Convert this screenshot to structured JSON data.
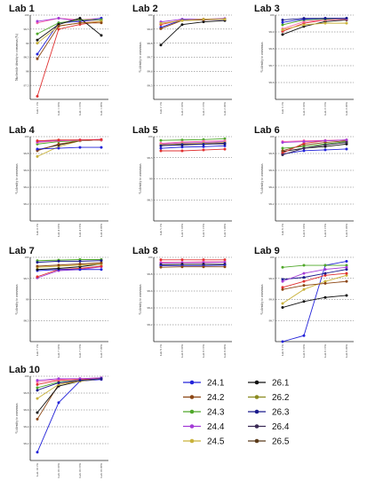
{
  "legend": [
    {
      "name": "24.1",
      "color": "#2323d9"
    },
    {
      "name": "24.2",
      "color": "#8b4513"
    },
    {
      "name": "24.3",
      "color": "#4fa82a"
    },
    {
      "name": "24.4",
      "color": "#a33bd6"
    },
    {
      "name": "24.5",
      "color": "#c9b23a"
    },
    {
      "name": "26.1",
      "color": "#111111"
    },
    {
      "name": "26.2",
      "color": "#8a8a1e"
    },
    {
      "name": "26.3",
      "color": "#1a1a8c"
    },
    {
      "name": "26.4",
      "color": "#3a2a55"
    },
    {
      "name": "26.5",
      "color": "#5a3a1a"
    }
  ],
  "chart_data": [
    {
      "type": "line",
      "title": "Lab 1",
      "ylabel": "Nucleotide identity to consensus (%)",
      "categories": [
        "Lab 1 1%",
        "Lab 1 10%",
        "Lab 1 15%",
        "Lab 1 20%"
      ],
      "ylim": [
        97.4,
        100.1
      ],
      "yticks": [
        "97.5",
        "98",
        "98.5",
        "99",
        "99.5",
        "100"
      ],
      "series": [
        {
          "color": "#e03030",
          "values": [
            97.5,
            99.65,
            99.8,
            99.9
          ]
        },
        {
          "color": "#ff66aa",
          "values": [
            99.85,
            100.0,
            99.95,
            100.0
          ]
        },
        {
          "color": "#a33bd6",
          "values": [
            99.9,
            100.0,
            99.9,
            99.95
          ]
        },
        {
          "color": "#2323d9",
          "values": [
            98.85,
            99.85,
            99.9,
            100.0
          ]
        },
        {
          "color": "#4fa82a",
          "values": [
            99.5,
            99.85,
            99.95,
            99.95
          ]
        },
        {
          "color": "#c9b23a",
          "values": [
            99.2,
            99.75,
            99.85,
            99.9
          ]
        },
        {
          "color": "#111111",
          "values": [
            99.3,
            99.8,
            100.0,
            99.45
          ]
        },
        {
          "color": "#8b4513",
          "values": [
            98.7,
            99.75,
            99.85,
            99.85
          ]
        }
      ]
    },
    {
      "type": "line",
      "title": "Lab 2",
      "ylabel": "% identity to consensus",
      "categories": [
        "Lab 2 1%",
        "Lab 2 10%",
        "Lab 2 15%",
        "Lab 2 20%"
      ],
      "ylim": [
        99.4,
        100.02
      ],
      "yticks": [
        "99.5",
        "99.6",
        "99.7",
        "99.8",
        "99.9",
        "100"
      ],
      "series": [
        {
          "color": "#111111",
          "values": [
            99.8,
            99.95,
            99.97,
            99.98
          ]
        },
        {
          "color": "#e03030",
          "values": [
            99.95,
            99.985,
            99.99,
            99.99
          ]
        },
        {
          "color": "#a33bd6",
          "values": [
            99.97,
            99.99,
            99.99,
            99.995
          ]
        },
        {
          "color": "#2323d9",
          "values": [
            99.93,
            99.985,
            99.985,
            99.99
          ]
        },
        {
          "color": "#8b4513",
          "values": [
            99.92,
            99.98,
            99.985,
            99.99
          ]
        },
        {
          "color": "#c9b23a",
          "values": [
            99.96,
            99.98,
            99.99,
            99.99
          ]
        }
      ]
    },
    {
      "type": "line",
      "title": "Lab 3",
      "ylabel": "% identity to consensus",
      "categories": [
        "Lab 3 1%",
        "Lab 3 10%",
        "Lab 3 15%",
        "Lab 3 20%"
      ],
      "ylim": [
        99.5,
        100.02
      ],
      "yticks": [
        "99.6",
        "99.7",
        "99.8",
        "99.9",
        "100"
      ],
      "series": [
        {
          "color": "#111111",
          "values": [
            99.9,
            99.95,
            99.98,
            99.99
          ]
        },
        {
          "color": "#e03030",
          "values": [
            99.92,
            99.97,
            99.99,
            99.995
          ]
        },
        {
          "color": "#ff66aa",
          "values": [
            99.935,
            99.98,
            99.99,
            99.995
          ]
        },
        {
          "color": "#4fa82a",
          "values": [
            99.96,
            99.99,
            99.995,
            100.0
          ]
        },
        {
          "color": "#2323d9",
          "values": [
            99.975,
            99.995,
            100.0,
            100.0
          ]
        },
        {
          "color": "#1a1a8c",
          "values": [
            99.99,
            100.0,
            100.0,
            100.0
          ]
        },
        {
          "color": "#c9b23a",
          "values": [
            99.93,
            99.96,
            99.97,
            99.97
          ]
        }
      ]
    },
    {
      "type": "line",
      "title": "Lab 4",
      "ylabel": "% identity to consensus",
      "categories": [
        "Lab 4 1%",
        "Lab 4 10%",
        "Lab 4 15%",
        "Lab 4 20%"
      ],
      "ylim": [
        99.0,
        100.02
      ],
      "yticks": [
        "99.2",
        "99.4",
        "99.6",
        "99.8",
        "100"
      ],
      "series": [
        {
          "color": "#c9b23a",
          "values": [
            99.78,
            99.9,
            99.97,
            99.98
          ]
        },
        {
          "color": "#111111",
          "values": [
            99.86,
            99.92,
            99.97,
            99.98
          ]
        },
        {
          "color": "#8b4513",
          "values": [
            99.85,
            99.93,
            99.97,
            99.98
          ]
        },
        {
          "color": "#2323d9",
          "values": [
            99.87,
            99.88,
            99.89,
            99.89
          ]
        },
        {
          "color": "#4fa82a",
          "values": [
            99.93,
            99.96,
            99.97,
            99.98
          ]
        },
        {
          "color": "#ff66aa",
          "values": [
            99.95,
            99.97,
            99.975,
            99.98
          ]
        },
        {
          "color": "#a33bd6",
          "values": [
            99.96,
            99.975,
            99.98,
            99.985
          ]
        },
        {
          "color": "#e03030",
          "values": [
            99.97,
            99.98,
            99.98,
            99.985
          ]
        }
      ]
    },
    {
      "type": "line",
      "title": "Lab 5",
      "ylabel": "% identity to consensus",
      "categories": [
        "Lab 5 1%",
        "Lab 5 10%",
        "Lab 5 15%",
        "Lab 5 20%"
      ],
      "ylim": [
        98.0,
        100.02
      ],
      "yticks": [
        "98.5",
        "99",
        "99.5",
        "100"
      ],
      "series": [
        {
          "color": "#4fa82a",
          "values": [
            99.93,
            99.94,
            99.95,
            99.97
          ]
        },
        {
          "color": "#e03030",
          "values": [
            99.68,
            99.68,
            99.7,
            99.72
          ]
        },
        {
          "color": "#2323d9",
          "values": [
            99.74,
            99.77,
            99.78,
            99.8
          ]
        },
        {
          "color": "#111111",
          "values": [
            99.81,
            99.82,
            99.84,
            99.85
          ]
        },
        {
          "color": "#8b4513",
          "values": [
            99.83,
            99.84,
            99.85,
            99.87
          ]
        },
        {
          "color": "#a33bd6",
          "values": [
            99.84,
            99.87,
            99.88,
            99.9
          ]
        },
        {
          "color": "#ff66aa",
          "values": [
            99.86,
            99.89,
            99.91,
            99.92
          ]
        },
        {
          "color": "#c9b23a",
          "values": [
            99.82,
            99.85,
            99.86,
            99.88
          ]
        },
        {
          "color": "#1a1a8c",
          "values": [
            99.8,
            99.83,
            99.84,
            99.86
          ]
        }
      ]
    },
    {
      "type": "line",
      "title": "Lab 6",
      "ylabel": "% identity to consensus",
      "categories": [
        "Lab 6 1%",
        "Lab 6 10%",
        "Lab 6 15%",
        "Lab 6 20%"
      ],
      "ylim": [
        99.0,
        100.02
      ],
      "yticks": [
        "99.2",
        "99.4",
        "99.6",
        "99.8",
        "100"
      ],
      "series": [
        {
          "color": "#2323d9",
          "values": [
            99.81,
            99.85,
            99.86,
            99.87
          ]
        },
        {
          "color": "#111111",
          "values": [
            99.84,
            99.88,
            99.9,
            99.93
          ]
        },
        {
          "color": "#8b4513",
          "values": [
            99.85,
            99.92,
            99.95,
            99.97
          ]
        },
        {
          "color": "#4fa82a",
          "values": [
            99.88,
            99.9,
            99.93,
            99.96
          ]
        },
        {
          "color": "#e03030",
          "values": [
            99.82,
            99.94,
            99.97,
            99.98
          ]
        },
        {
          "color": "#ff66aa",
          "values": [
            99.96,
            99.97,
            99.975,
            99.98
          ]
        },
        {
          "color": "#a33bd6",
          "values": [
            99.95,
            99.96,
            99.97,
            99.98
          ]
        },
        {
          "color": "#3a2a55",
          "values": [
            99.8,
            99.88,
            99.92,
            99.95
          ]
        }
      ]
    },
    {
      "type": "line",
      "title": "Lab 7",
      "ylabel": "% identity to consensus",
      "categories": [
        "Lab 7 1%",
        "Lab 7 10%",
        "Lab 7 15%",
        "Lab 7 20%"
      ],
      "ylim": [
        98.5,
        100.02
      ],
      "yticks": [
        "98.5",
        "99",
        "99.5",
        "100"
      ],
      "series": [
        {
          "color": "#a33bd6",
          "values": [
            99.65,
            99.78,
            99.8,
            99.85
          ]
        },
        {
          "color": "#e03030",
          "values": [
            99.67,
            99.8,
            99.82,
            99.86
          ]
        },
        {
          "color": "#2323d9",
          "values": [
            99.78,
            99.8,
            99.8,
            99.8
          ]
        },
        {
          "color": "#111111",
          "values": [
            99.8,
            99.82,
            99.85,
            99.9
          ]
        },
        {
          "color": "#4fa82a",
          "values": [
            99.96,
            99.97,
            99.98,
            99.98
          ]
        },
        {
          "color": "#1a1a8c",
          "values": [
            99.93,
            99.95,
            99.95,
            99.96
          ]
        },
        {
          "color": "#c9b23a",
          "values": [
            99.84,
            99.86,
            99.88,
            99.9
          ]
        },
        {
          "color": "#8b4513",
          "values": [
            99.86,
            99.88,
            99.9,
            99.92
          ]
        }
      ]
    },
    {
      "type": "line",
      "title": "Lab 8",
      "ylabel": "% identity to consensus",
      "categories": [
        "Lab 8 1%",
        "Lab 8 10%",
        "Lab 8 15%",
        "Lab 8 20%"
      ],
      "ylim": [
        99.0,
        100.02
      ],
      "yticks": [
        "99.2",
        "99.4",
        "99.6",
        "99.8",
        "100"
      ],
      "series": [
        {
          "color": "#e03030",
          "values": [
            99.99,
            99.99,
            99.99,
            99.99
          ]
        },
        {
          "color": "#ff66aa",
          "values": [
            99.96,
            99.96,
            99.965,
            99.965
          ]
        },
        {
          "color": "#a33bd6",
          "values": [
            99.95,
            99.955,
            99.955,
            99.96
          ]
        },
        {
          "color": "#111111",
          "values": [
            99.93,
            99.935,
            99.935,
            99.935
          ]
        },
        {
          "color": "#2323d9",
          "values": [
            99.92,
            99.92,
            99.92,
            99.925
          ]
        },
        {
          "color": "#8b4513",
          "values": [
            99.9,
            99.905,
            99.905,
            99.905
          ]
        }
      ]
    },
    {
      "type": "line",
      "title": "Lab 9",
      "ylabel": "% identity to consensus",
      "categories": [
        "Lab 9 1%",
        "Lab 9 10%",
        "Lab 9 15%",
        "Lab 9 20%"
      ],
      "ylim": [
        99.6,
        100.02
      ],
      "yticks": [
        "99.7",
        "99.8",
        "99.9",
        "100"
      ],
      "series": [
        {
          "color": "#2323d9",
          "values": [
            99.6,
            99.63,
            99.98,
            100.0
          ]
        },
        {
          "color": "#111111",
          "values": [
            99.77,
            99.8,
            99.82,
            99.83
          ]
        },
        {
          "color": "#c9b23a",
          "values": [
            99.79,
            99.86,
            99.9,
            99.93
          ]
        },
        {
          "color": "#8b4513",
          "values": [
            99.86,
            99.88,
            99.89,
            99.9
          ]
        },
        {
          "color": "#e03030",
          "values": [
            99.87,
            99.9,
            99.93,
            99.94
          ]
        },
        {
          "color": "#4fa82a",
          "values": [
            99.97,
            99.98,
            99.98,
            99.98
          ]
        },
        {
          "color": "#1a1a8c",
          "values": [
            99.91,
            99.92,
            99.94,
            99.96
          ]
        },
        {
          "color": "#a33bd6",
          "values": [
            99.9,
            99.94,
            99.96,
            99.97
          ]
        }
      ]
    },
    {
      "type": "line",
      "title": "Lab 10",
      "ylabel": "% identity to consensus",
      "categories": [
        "Lab 10 1%",
        "Lab 10 10%",
        "Lab 10 15%",
        "Lab 10 20%"
      ],
      "ylim": [
        99.0,
        100.02
      ],
      "yticks": [
        "99.2",
        "99.4",
        "99.6",
        "99.8",
        "100"
      ],
      "series": [
        {
          "color": "#2323d9",
          "values": [
            99.1,
            99.7,
            99.96,
            99.98
          ]
        },
        {
          "color": "#8b4513",
          "values": [
            99.5,
            99.92,
            99.97,
            99.99
          ]
        },
        {
          "color": "#111111",
          "values": [
            99.58,
            99.9,
            99.96,
            99.99
          ]
        },
        {
          "color": "#c9b23a",
          "values": [
            99.75,
            99.92,
            99.96,
            99.99
          ]
        },
        {
          "color": "#4fa82a",
          "values": [
            99.88,
            99.95,
            99.97,
            99.99
          ]
        },
        {
          "color": "#e03030",
          "values": [
            99.92,
            99.97,
            99.98,
            99.99
          ]
        },
        {
          "color": "#ff66aa",
          "values": [
            99.95,
            99.98,
            99.99,
            100.0
          ]
        },
        {
          "color": "#a33bd6",
          "values": [
            99.97,
            99.99,
            99.99,
            100.0
          ]
        },
        {
          "color": "#1a1a8c",
          "values": [
            99.85,
            99.94,
            99.97,
            99.99
          ]
        }
      ]
    }
  ]
}
